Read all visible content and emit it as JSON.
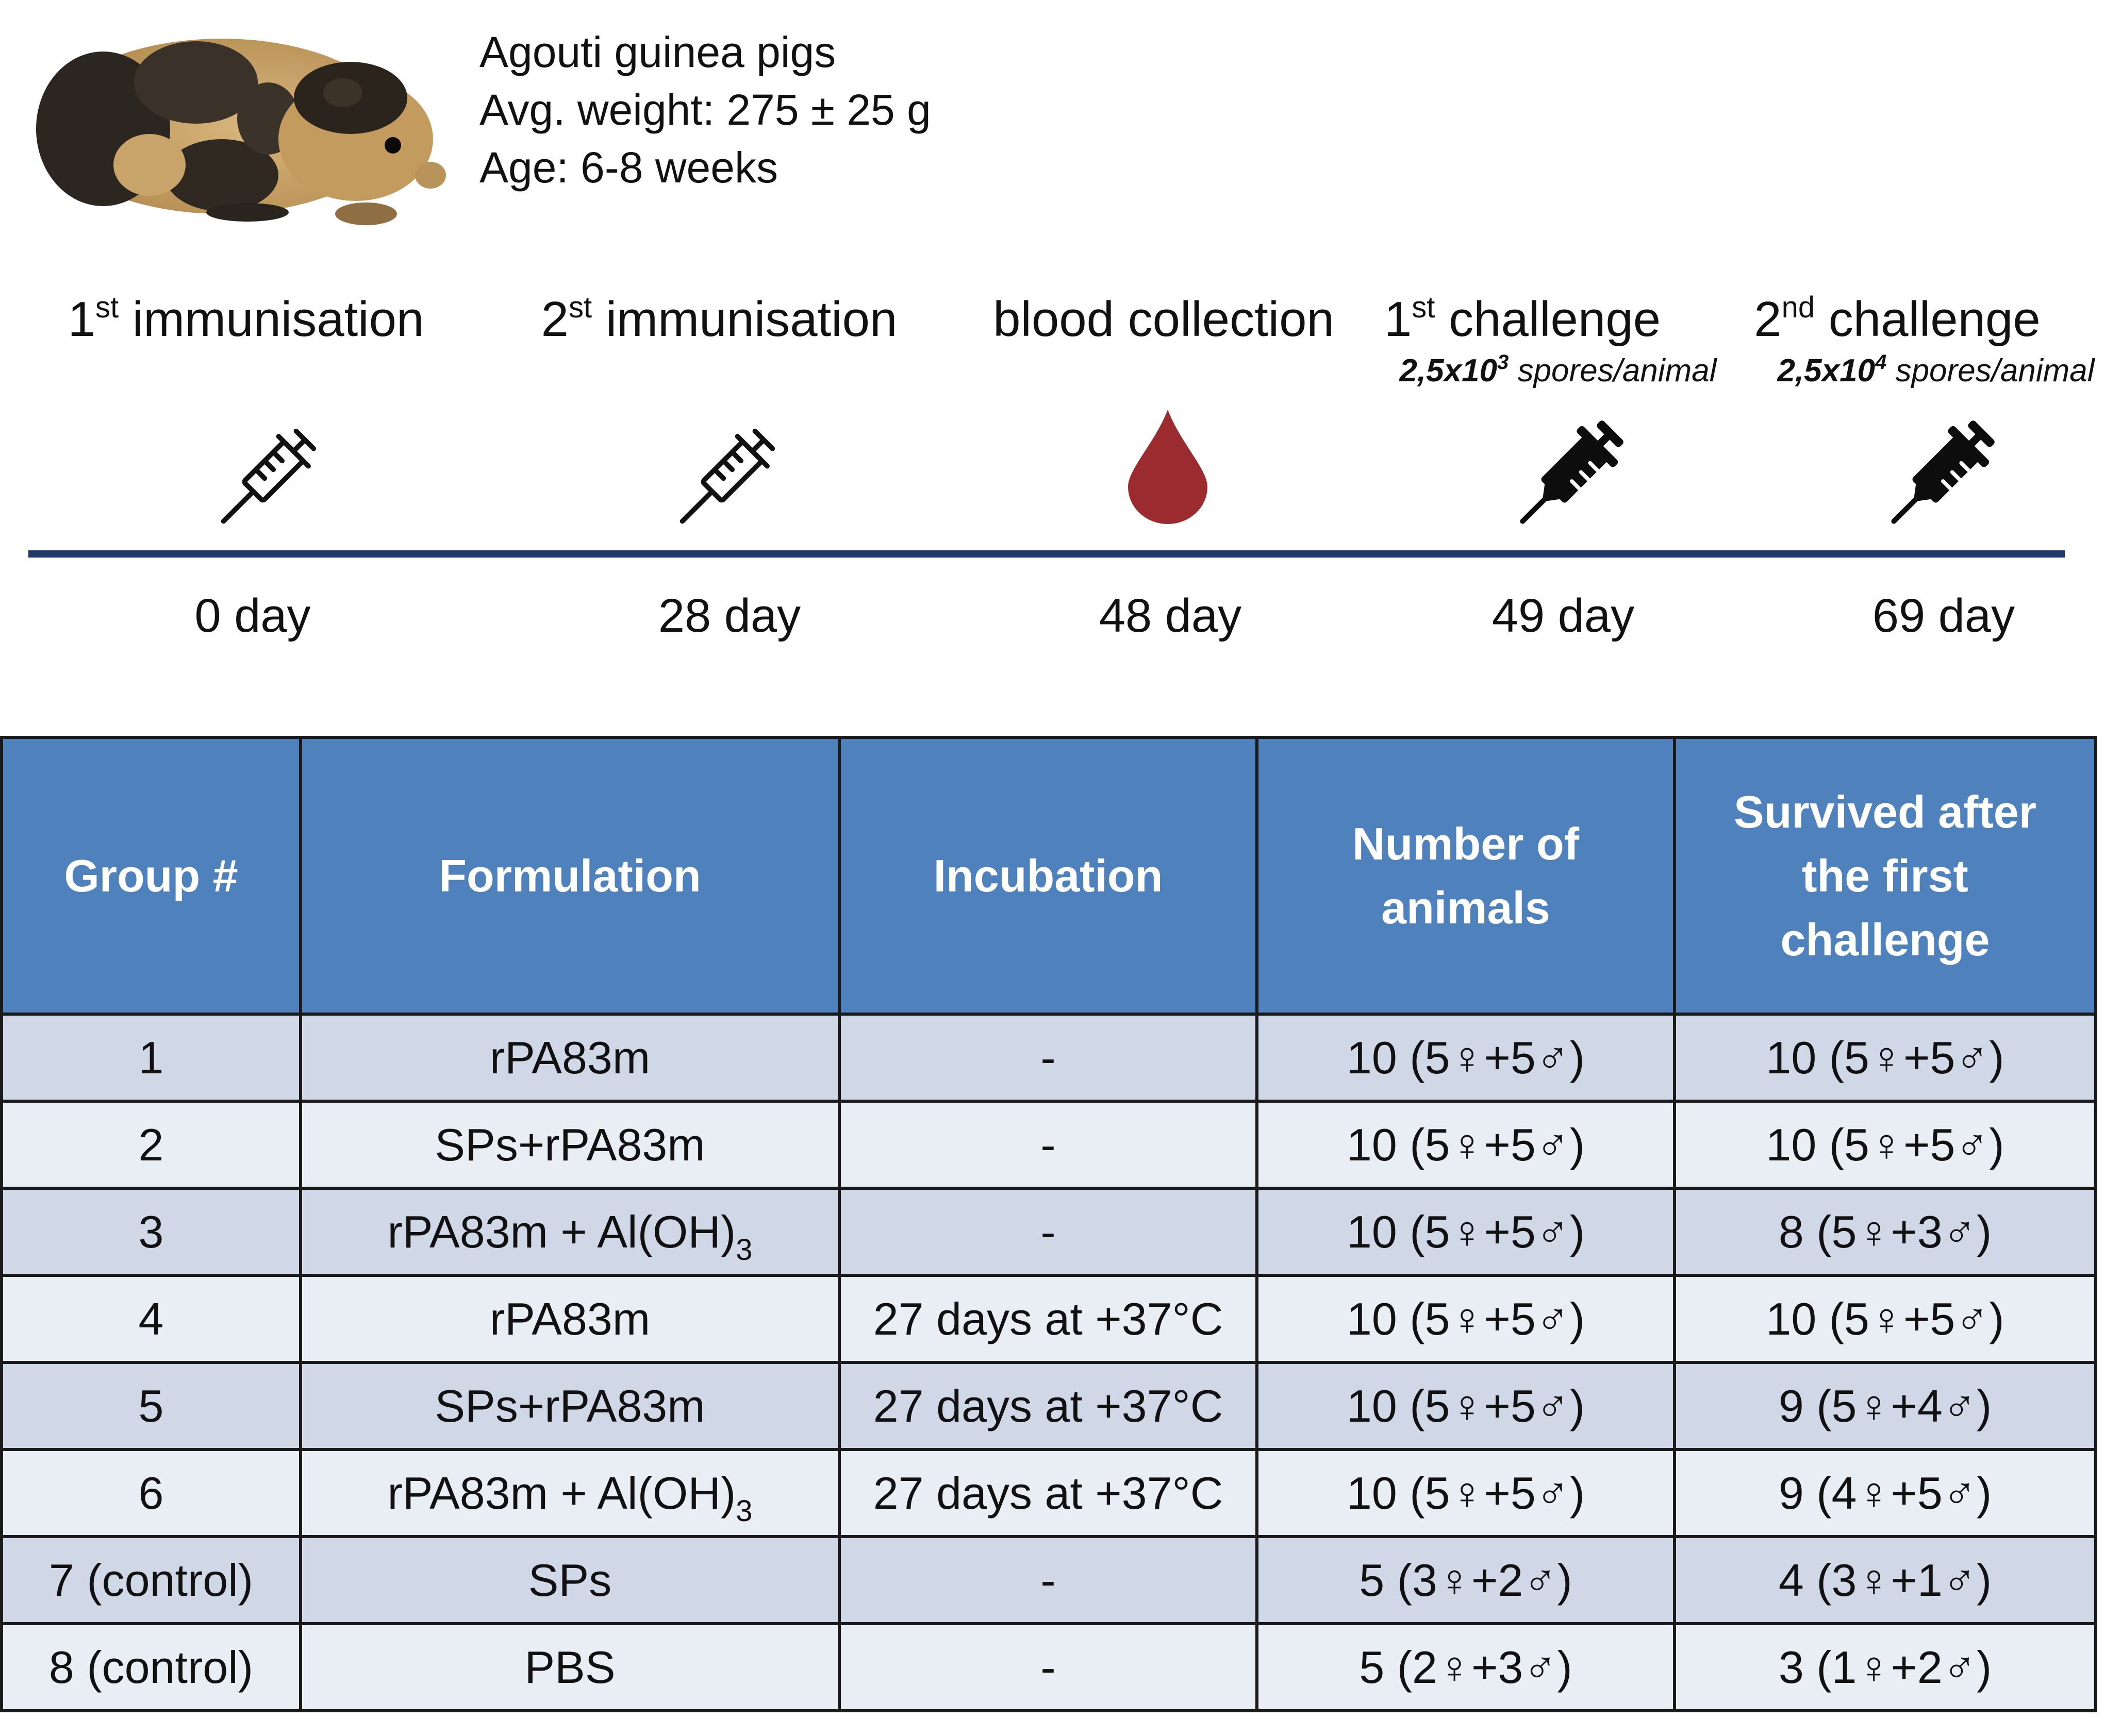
{
  "animal": {
    "icon": "guinea-pig-photo",
    "lines": [
      "Agouti guinea pigs",
      "Avg. weight: 275 ± 25 g",
      "Age: 6-8 weeks"
    ]
  },
  "timeline": [
    {
      "num": "1",
      "sup": "st",
      "text": "immunisation",
      "sub_bold": "",
      "sub_sup": "",
      "sub_text": "",
      "icon": "syringe-outline-icon",
      "day": "0 day"
    },
    {
      "num": "2",
      "sup": "st",
      "text": "immunisation",
      "sub_bold": "",
      "sub_sup": "",
      "sub_text": "",
      "icon": "syringe-outline-icon",
      "day": "28 day"
    },
    {
      "num": "",
      "sup": "",
      "text": "blood collection",
      "sub_bold": "",
      "sub_sup": "",
      "sub_text": "",
      "icon": "blood-drop-icon",
      "day": "48 day"
    },
    {
      "num": "1",
      "sup": "st",
      "text": "challenge",
      "sub_bold": "2,5x10",
      "sub_sup": "3",
      "sub_text": "spores/animal",
      "icon": "syringe-filled-icon",
      "day": "49 day"
    },
    {
      "num": "2",
      "sup": "nd",
      "text": "challenge",
      "sub_bold": "2,5x10",
      "sub_sup": "4",
      "sub_text": "spores/animal",
      "icon": "syringe-filled-icon",
      "day": "69 day"
    }
  ],
  "colors": {
    "header_bg": "#4f81bd",
    "row_odd": "#d0d8e8",
    "row_even": "#e9edf4",
    "timeline_line": "#1f3a6b",
    "blood": "#9b2b2f"
  },
  "table": {
    "headers": [
      "Group #",
      "Formulation",
      "Incubation",
      "Number of animals",
      "Survived after the first challenge"
    ],
    "rows": [
      {
        "group": "1",
        "formulation": "rPA83m",
        "formulation_sub": "",
        "incubation": "-",
        "number": "10 (5♀+5♂)",
        "survived": "10 (5♀+5♂)"
      },
      {
        "group": "2",
        "formulation": "SPs+rPA83m",
        "formulation_sub": "",
        "incubation": "-",
        "number": "10 (5♀+5♂)",
        "survived": "10 (5♀+5♂)"
      },
      {
        "group": "3",
        "formulation": "rPA83m + Al(OH)",
        "formulation_sub": "3",
        "incubation": "-",
        "number": "10 (5♀+5♂)",
        "survived": "8 (5♀+3♂)"
      },
      {
        "group": "4",
        "formulation": "rPA83m",
        "formulation_sub": "",
        "incubation": "27 days at +37°C",
        "number": "10 (5♀+5♂)",
        "survived": "10 (5♀+5♂)"
      },
      {
        "group": "5",
        "formulation": "SPs+rPA83m",
        "formulation_sub": "",
        "incubation": "27 days at +37°C",
        "number": "10 (5♀+5♂)",
        "survived": "9 (5♀+4♂)"
      },
      {
        "group": "6",
        "formulation": "rPA83m + Al(OH)",
        "formulation_sub": "3",
        "incubation": "27 days at +37°C",
        "number": "10 (5♀+5♂)",
        "survived": "9 (4♀+5♂)"
      },
      {
        "group": "7 (control)",
        "formulation": "SPs",
        "formulation_sub": "",
        "incubation": "-",
        "number": "5 (3♀+2♂)",
        "survived": "4 (3♀+1♂)"
      },
      {
        "group": "8 (control)",
        "formulation": "PBS",
        "formulation_sub": "",
        "incubation": "-",
        "number": "5 (2♀+3♂)",
        "survived": "3 (1♀+2♂)"
      }
    ]
  }
}
